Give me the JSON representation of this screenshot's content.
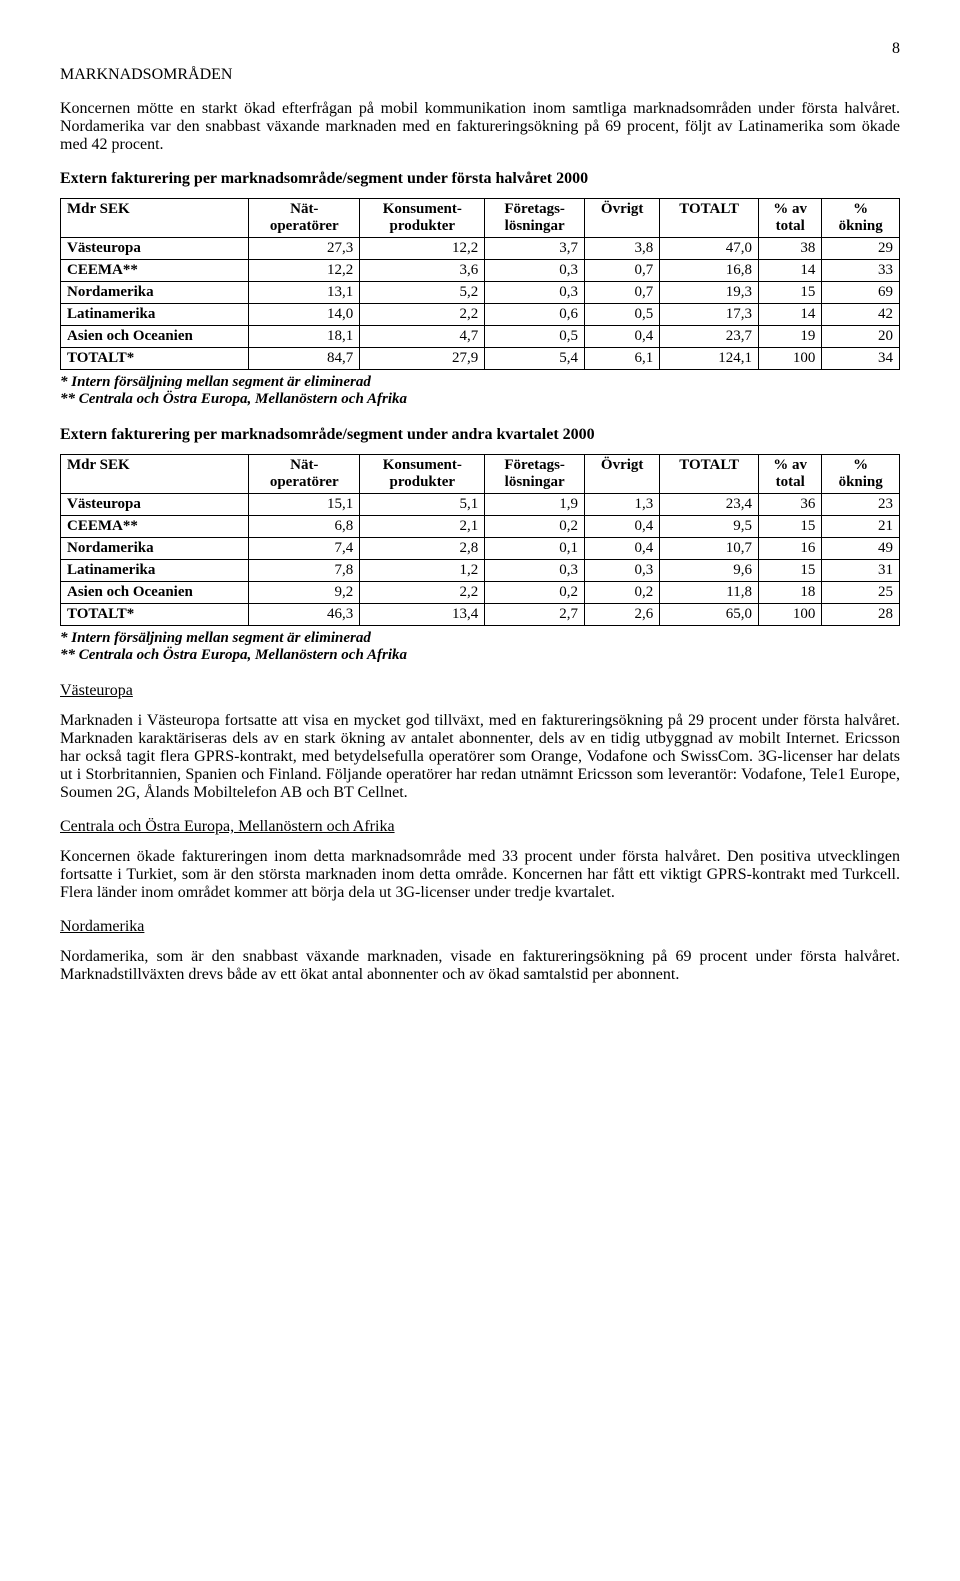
{
  "page_number": "8",
  "title": "MARKNADSOMRÅDEN",
  "intro_para": "Koncernen mötte en starkt ökad efterfrågan på mobil kommunikation inom samtliga marknadsområden under första halvåret. Nordamerika var den snabbast växande marknaden med en faktureringsökning på 69 procent, följt av Latinamerika som ökade med 42 procent.",
  "table1_heading": "Extern fakturering per marknadsområde/segment under första halvåret 2000",
  "headers": {
    "col1": "Mdr SEK",
    "col2a": "Nät-",
    "col2b": "operatörer",
    "col3a": "Konsument-",
    "col3b": "produkter",
    "col4a": "Företags-",
    "col4b": "lösningar",
    "col5": "Övrigt",
    "col6": "TOTALT",
    "col7a": "% av",
    "col7b": "total",
    "col8a": "%",
    "col8b": "ökning"
  },
  "table1_rows": [
    {
      "label": "Västeuropa",
      "c2": "27,3",
      "c3": "12,2",
      "c4": "3,7",
      "c5": "3,8",
      "c6": "47,0",
      "c7": "38",
      "c8": "29"
    },
    {
      "label": "CEEMA**",
      "c2": "12,2",
      "c3": "3,6",
      "c4": "0,3",
      "c5": "0,7",
      "c6": "16,8",
      "c7": "14",
      "c8": "33"
    },
    {
      "label": "Nordamerika",
      "c2": "13,1",
      "c3": "5,2",
      "c4": "0,3",
      "c5": "0,7",
      "c6": "19,3",
      "c7": "15",
      "c8": "69"
    },
    {
      "label": "Latinamerika",
      "c2": "14,0",
      "c3": "2,2",
      "c4": "0,6",
      "c5": "0,5",
      "c6": "17,3",
      "c7": "14",
      "c8": "42"
    },
    {
      "label": "Asien och Oceanien",
      "c2": "18,1",
      "c3": "4,7",
      "c4": "0,5",
      "c5": "0,4",
      "c6": "23,7",
      "c7": "19",
      "c8": "20"
    },
    {
      "label": "TOTALT*",
      "c2": "84,7",
      "c3": "27,9",
      "c4": "5,4",
      "c5": "6,1",
      "c6": "124,1",
      "c7": "100",
      "c8": "34"
    }
  ],
  "footnote1": "* Intern försäljning mellan segment är eliminerad",
  "footnote2": "** Centrala och Östra Europa, Mellanöstern och Afrika",
  "table2_heading": "Extern fakturering per marknadsområde/segment under andra kvartalet 2000",
  "table2_rows": [
    {
      "label": "Västeuropa",
      "c2": "15,1",
      "c3": "5,1",
      "c4": "1,9",
      "c5": "1,3",
      "c6": "23,4",
      "c7": "36",
      "c8": "23"
    },
    {
      "label": "CEEMA**",
      "c2": "6,8",
      "c3": "2,1",
      "c4": "0,2",
      "c5": "0,4",
      "c6": "9,5",
      "c7": "15",
      "c8": "21"
    },
    {
      "label": "Nordamerika",
      "c2": "7,4",
      "c3": "2,8",
      "c4": "0,1",
      "c5": "0,4",
      "c6": "10,7",
      "c7": "16",
      "c8": "49"
    },
    {
      "label": "Latinamerika",
      "c2": "7,8",
      "c3": "1,2",
      "c4": "0,3",
      "c5": "0,3",
      "c6": "9,6",
      "c7": "15",
      "c8": "31"
    },
    {
      "label": "Asien och Oceanien",
      "c2": "9,2",
      "c3": "2,2",
      "c4": "0,2",
      "c5": "0,2",
      "c6": "11,8",
      "c7": "18",
      "c8": "25"
    },
    {
      "label": "TOTALT*",
      "c2": "46,3",
      "c3": "13,4",
      "c4": "2,7",
      "c5": "2,6",
      "c6": "65,0",
      "c7": "100",
      "c8": "28"
    }
  ],
  "vasteuropa_heading": "Västeuropa",
  "vasteuropa_para": "Marknaden i Västeuropa fortsatte att visa en mycket god tillväxt, med en faktureringsökning på 29 procent under första halvåret. Marknaden karaktäriseras dels av en stark ökning av antalet abonnenter, dels av en tidig utbyggnad av mobilt Internet. Ericsson har också tagit flera GPRS-kontrakt, med betydelsefulla operatörer som Orange, Vodafone och SwissCom. 3G-licenser har delats ut i Storbritannien, Spanien och Finland. Följande operatörer har redan utnämnt Ericsson som leverantör: Vodafone, Tele1 Europe, Soumen 2G, Ålands Mobiltelefon AB och BT Cellnet.",
  "ceema_heading": "Centrala och Östra Europa, Mellanöstern och Afrika",
  "ceema_para": "Koncernen ökade faktureringen inom detta marknadsområde med 33 procent under första halvåret. Den positiva utvecklingen fortsatte i Turkiet, som är den största marknaden inom detta område. Koncernen har fått ett viktigt GPRS-kontrakt med Turkcell. Flera länder inom området kommer att börja dela ut 3G-licenser under tredje kvartalet.",
  "nordamerika_heading": "Nordamerika",
  "nordamerika_para": "Nordamerika, som är den snabbast växande marknaden, visade en faktureringsökning på 69 procent under första halvåret. Marknadstillväxten drevs både av ett ökat antal abonnenter och av ökad samtalstid per abonnent."
}
